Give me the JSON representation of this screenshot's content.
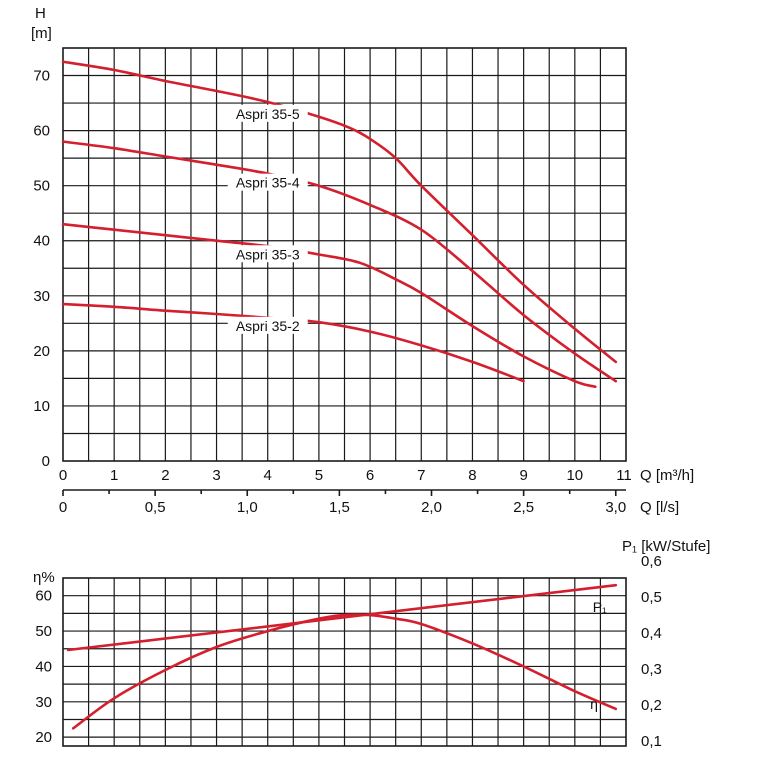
{
  "colors": {
    "curve": "#d31f2e",
    "grid": "#1a1a1a",
    "text": "#111111"
  },
  "chart_data": [
    {
      "type": "line",
      "title": "",
      "ylabel": "H",
      "yunit": "[m]",
      "xlabel": "Q [m³/h]",
      "xlabel2": "Q [l/s]",
      "xlim": [
        0,
        11
      ],
      "ylim": [
        0,
        75
      ],
      "x_ticks": [
        "0",
        "1",
        "2",
        "3",
        "4",
        "5",
        "6",
        "7",
        "8",
        "9",
        "10",
        "11"
      ],
      "y_ticks": [
        "0",
        "10",
        "20",
        "30",
        "40",
        "50",
        "60",
        "70"
      ],
      "x2_ticks": [
        {
          "q": 0,
          "label": "0"
        },
        {
          "q": 1.8,
          "label": "0,5"
        },
        {
          "q": 3.6,
          "label": "1,0"
        },
        {
          "q": 5.4,
          "label": "1,5"
        },
        {
          "q": 7.2,
          "label": "2,0"
        },
        {
          "q": 9.0,
          "label": "2,5"
        },
        {
          "q": 10.8,
          "label": "3,0"
        }
      ],
      "grid": true,
      "series": [
        {
          "name": "Aspri 35-5",
          "label_at": [
            4,
            62.5
          ],
          "points": [
            [
              0,
              72.5
            ],
            [
              1,
              71
            ],
            [
              2,
              69
            ],
            [
              3,
              67.2
            ],
            [
              4,
              65.2
            ],
            [
              5,
              62.5
            ],
            [
              5.6,
              60.5
            ],
            [
              6,
              58.5
            ],
            [
              6.5,
              55
            ],
            [
              7,
              50
            ],
            [
              8,
              41
            ],
            [
              9,
              32
            ],
            [
              10,
              24
            ],
            [
              10.8,
              18
            ]
          ]
        },
        {
          "name": "Aspri 35-4",
          "label_at": [
            4,
            50
          ],
          "points": [
            [
              0,
              58
            ],
            [
              1,
              56.8
            ],
            [
              2,
              55.3
            ],
            [
              3,
              53.8
            ],
            [
              4,
              52.2
            ],
            [
              5,
              50
            ],
            [
              6,
              46.5
            ],
            [
              7,
              42
            ],
            [
              8,
              34.5
            ],
            [
              9,
              26.5
            ],
            [
              10,
              19.5
            ],
            [
              10.8,
              14.5
            ]
          ]
        },
        {
          "name": "Aspri 35-3",
          "label_at": [
            4,
            37
          ],
          "points": [
            [
              0,
              43
            ],
            [
              1,
              42
            ],
            [
              2,
              41
            ],
            [
              3,
              40
            ],
            [
              4,
              39
            ],
            [
              5,
              37.5
            ],
            [
              5.8,
              36
            ],
            [
              6.5,
              33
            ],
            [
              7,
              30.5
            ],
            [
              8,
              24.5
            ],
            [
              9,
              19
            ],
            [
              10,
              14.5
            ],
            [
              10.4,
              13.5
            ]
          ]
        },
        {
          "name": "Aspri 35-2",
          "label_at": [
            4,
            24
          ],
          "points": [
            [
              0,
              28.5
            ],
            [
              1,
              28
            ],
            [
              2,
              27.3
            ],
            [
              3,
              26.7
            ],
            [
              4,
              26
            ],
            [
              5,
              25.2
            ],
            [
              6,
              23.5
            ],
            [
              7,
              21
            ],
            [
              8,
              18
            ],
            [
              9,
              14.5
            ]
          ]
        }
      ]
    },
    {
      "type": "line",
      "title": "",
      "ylabel": "η%",
      "ylabel_right": "P₁ [kW/Stufe]",
      "xlim": [
        0,
        11
      ],
      "ylim": [
        17.5,
        65
      ],
      "ylim_right": [
        0.08333,
        0.55
      ],
      "y_ticks": [
        "20",
        "30",
        "40",
        "50",
        "60"
      ],
      "y_ticks_right": [
        "0,1",
        "0,2",
        "0,3",
        "0,4",
        "0,5",
        "0,6"
      ],
      "grid": true,
      "series": [
        {
          "name": "η",
          "axis": "left",
          "label_at": [
            10.3,
            28
          ],
          "points": [
            [
              0.2,
              22.5
            ],
            [
              1,
              31
            ],
            [
              2,
              39
            ],
            [
              3,
              45.5
            ],
            [
              4,
              50
            ],
            [
              5,
              53.5
            ],
            [
              5.5,
              54.5
            ],
            [
              6,
              54.5
            ],
            [
              6.5,
              53.5
            ],
            [
              7,
              52
            ],
            [
              8,
              46.5
            ],
            [
              9,
              40
            ],
            [
              10,
              33
            ],
            [
              10.8,
              28
            ]
          ]
        },
        {
          "name": "P₁",
          "axis": "right",
          "label_at": [
            10.35,
            0.455
          ],
          "points": [
            [
              0.1,
              0.35
            ],
            [
              10.8,
              0.53
            ]
          ]
        }
      ]
    }
  ]
}
